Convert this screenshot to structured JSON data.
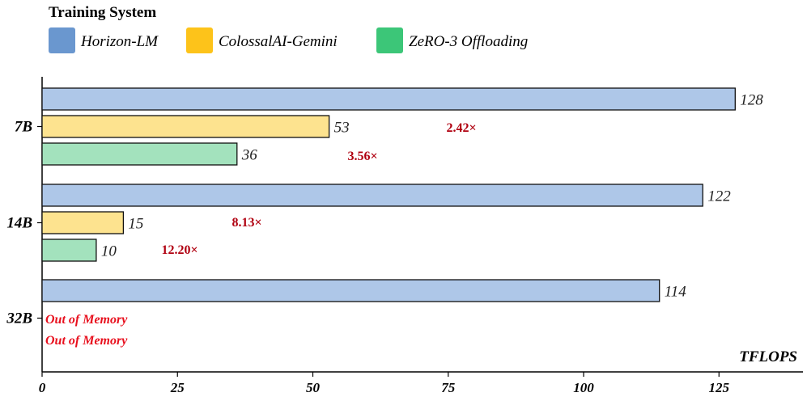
{
  "chart_data": {
    "type": "bar",
    "orientation": "horizontal",
    "legend_title": "Training System",
    "categories": [
      "7B",
      "14B",
      "32B"
    ],
    "series": [
      {
        "name": "Horizon-LM",
        "color": "#aec7e8",
        "legend_color": "#6a97cf",
        "values": [
          128,
          122,
          114
        ]
      },
      {
        "name": "ColossalAI-Gemini",
        "color": "#fde38f",
        "legend_color": "#fdc31a",
        "values": [
          53,
          15,
          null
        ]
      },
      {
        "name": "ZeRO-3 Offloading",
        "color": "#a3e2bd",
        "legend_color": "#3cc678",
        "values": [
          36,
          10,
          null
        ]
      }
    ],
    "speedups": [
      {
        "category": "7B",
        "series": "ColossalAI-Gemini",
        "label": "2.42×"
      },
      {
        "category": "7B",
        "series": "ZeRO-3 Offloading",
        "label": "3.56×"
      },
      {
        "category": "14B",
        "series": "ColossalAI-Gemini",
        "label": "8.13×"
      },
      {
        "category": "14B",
        "series": "ZeRO-3 Offloading",
        "label": "12.20×"
      }
    ],
    "out_of_memory": [
      {
        "category": "32B",
        "series": "ColossalAI-Gemini",
        "label": "Out of Memory"
      },
      {
        "category": "32B",
        "series": "ZeRO-3 Offloading",
        "label": "Out of Memory"
      }
    ],
    "xlabel": "TFLOPS",
    "xlim": [
      0,
      140
    ],
    "xticks": [
      0,
      25,
      50,
      75,
      100,
      125
    ],
    "grid": false,
    "legend_position": "top-left"
  }
}
